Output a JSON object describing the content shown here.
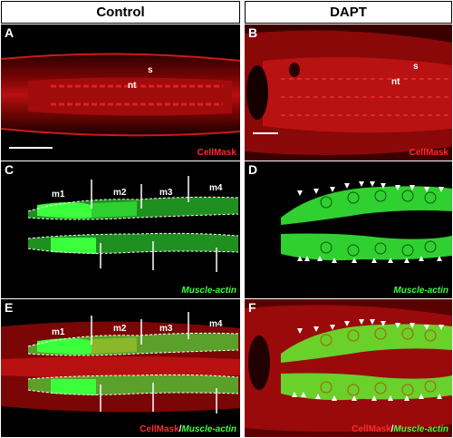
{
  "headers": {
    "left": "Control",
    "right": "DAPT"
  },
  "panels": {
    "A": {
      "label": "A",
      "marker": "CellMask",
      "tags": {
        "s": "s",
        "nt": "nt"
      }
    },
    "B": {
      "label": "B",
      "marker": "CellMask",
      "tags": {
        "s": "s",
        "nt": "nt"
      }
    },
    "C": {
      "label": "C",
      "marker": "Muscle-actin",
      "somites": [
        "m1",
        "m2",
        "m3",
        "m4"
      ]
    },
    "D": {
      "label": "D",
      "marker": "Muscle-actin"
    },
    "E": {
      "label": "E",
      "marker_red": "CellMask",
      "separator": "/",
      "marker_green": "Muscle-actin",
      "somites": [
        "m1",
        "m2",
        "m3",
        "m4"
      ]
    },
    "F": {
      "label": "F",
      "marker_red": "CellMask",
      "separator": "/",
      "marker_green": "Muscle-actin"
    }
  },
  "colors": {
    "cellmask": "#ff2a2a",
    "actin": "#3cff3c",
    "background": "#000000"
  }
}
